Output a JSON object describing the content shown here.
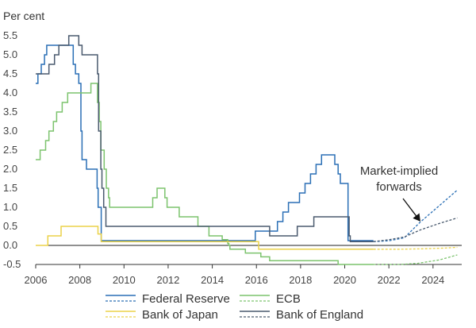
{
  "chart_data": {
    "type": "line",
    "ylabel": "Per cent",
    "xlim": [
      2006,
      2025.3
    ],
    "ylim": [
      -0.5,
      5.75
    ],
    "x_ticks": [
      2006,
      2008,
      2010,
      2012,
      2014,
      2016,
      2018,
      2020,
      2022,
      2024
    ],
    "y_ticks": [
      -0.5,
      0.0,
      0.5,
      1.0,
      1.5,
      2.0,
      2.5,
      3.0,
      3.5,
      4.0,
      4.5,
      5.0,
      5.5
    ],
    "y_tick_labels": [
      "-0.5",
      "0.0",
      "0.5",
      "1.0",
      "1.5",
      "2.0",
      "2.5",
      "3.0",
      "3.5",
      "4.0",
      "4.5",
      "5.0",
      "5.5"
    ],
    "grid": false,
    "zero_line": true,
    "annotation": {
      "lines": [
        "Market-implied",
        "forwards"
      ],
      "arrow_target": [
        2023.4,
        0.65
      ]
    },
    "legend_position": "bottom",
    "series": [
      {
        "name": "Federal Reserve",
        "color": "#2a6fb5",
        "step_points": [
          [
            2006.0,
            4.25
          ],
          [
            2006.1,
            4.5
          ],
          [
            2006.25,
            4.75
          ],
          [
            2006.4,
            5.0
          ],
          [
            2006.5,
            5.25
          ],
          [
            2007.7,
            4.75
          ],
          [
            2007.8,
            4.5
          ],
          [
            2007.95,
            4.25
          ],
          [
            2008.05,
            3.0
          ],
          [
            2008.1,
            2.25
          ],
          [
            2008.3,
            2.0
          ],
          [
            2008.78,
            1.5
          ],
          [
            2008.83,
            1.0
          ],
          [
            2008.97,
            0.125
          ],
          [
            2015.95,
            0.375
          ],
          [
            2016.95,
            0.625
          ],
          [
            2017.2,
            0.875
          ],
          [
            2017.45,
            1.125
          ],
          [
            2017.95,
            1.375
          ],
          [
            2018.2,
            1.625
          ],
          [
            2018.45,
            1.875
          ],
          [
            2018.7,
            2.125
          ],
          [
            2018.95,
            2.375
          ],
          [
            2019.55,
            2.125
          ],
          [
            2019.7,
            1.875
          ],
          [
            2019.8,
            1.625
          ],
          [
            2020.15,
            0.125
          ],
          [
            2021.3,
            0.125
          ]
        ],
        "forward_points": [
          [
            2021.3,
            0.1
          ],
          [
            2022.0,
            0.12
          ],
          [
            2022.7,
            0.2
          ],
          [
            2023.4,
            0.6
          ],
          [
            2024.2,
            1.0
          ],
          [
            2025.1,
            1.45
          ]
        ]
      },
      {
        "name": "ECB",
        "color": "#7cc36d",
        "step_points": [
          [
            2006.0,
            2.25
          ],
          [
            2006.2,
            2.5
          ],
          [
            2006.45,
            2.75
          ],
          [
            2006.6,
            3.0
          ],
          [
            2006.8,
            3.25
          ],
          [
            2006.95,
            3.5
          ],
          [
            2007.2,
            3.75
          ],
          [
            2007.45,
            4.0
          ],
          [
            2008.5,
            4.25
          ],
          [
            2008.8,
            3.75
          ],
          [
            2008.88,
            3.25
          ],
          [
            2008.95,
            2.5
          ],
          [
            2009.1,
            2.0
          ],
          [
            2009.2,
            1.5
          ],
          [
            2009.3,
            1.25
          ],
          [
            2009.35,
            1.0
          ],
          [
            2011.3,
            1.25
          ],
          [
            2011.5,
            1.5
          ],
          [
            2011.85,
            1.25
          ],
          [
            2011.95,
            1.0
          ],
          [
            2012.5,
            0.75
          ],
          [
            2013.35,
            0.5
          ],
          [
            2013.85,
            0.25
          ],
          [
            2014.45,
            0.15
          ],
          [
            2014.7,
            0.05
          ],
          [
            2014.75,
            0.0
          ],
          [
            2014.8,
            -0.1
          ],
          [
            2015.5,
            -0.2
          ],
          [
            2016.2,
            -0.3
          ],
          [
            2016.6,
            -0.4
          ],
          [
            2019.7,
            -0.5
          ],
          [
            2021.3,
            -0.5
          ]
        ],
        "forward_points": [
          [
            2021.3,
            -0.5
          ],
          [
            2022.5,
            -0.5
          ],
          [
            2023.3,
            -0.47
          ],
          [
            2024.3,
            -0.38
          ],
          [
            2025.1,
            -0.25
          ]
        ]
      },
      {
        "name": "Bank of Japan",
        "color": "#ebd248",
        "step_points": [
          [
            2006.0,
            0.0
          ],
          [
            2006.55,
            0.25
          ],
          [
            2007.15,
            0.5
          ],
          [
            2008.82,
            0.3
          ],
          [
            2008.97,
            0.1
          ],
          [
            2016.1,
            -0.1
          ],
          [
            2021.3,
            -0.1
          ]
        ],
        "forward_points": [
          [
            2021.3,
            -0.1
          ],
          [
            2022.5,
            -0.1
          ],
          [
            2023.5,
            -0.09
          ],
          [
            2024.5,
            -0.07
          ],
          [
            2025.1,
            -0.05
          ]
        ]
      },
      {
        "name": "Bank of England",
        "color": "#4a5a6e",
        "step_points": [
          [
            2006.0,
            4.5
          ],
          [
            2006.6,
            4.75
          ],
          [
            2006.85,
            5.0
          ],
          [
            2007.05,
            5.25
          ],
          [
            2007.5,
            5.5
          ],
          [
            2007.95,
            5.25
          ],
          [
            2008.1,
            5.0
          ],
          [
            2008.3,
            5.0
          ],
          [
            2008.8,
            4.5
          ],
          [
            2008.85,
            3.0
          ],
          [
            2008.95,
            2.0
          ],
          [
            2009.0,
            1.5
          ],
          [
            2009.08,
            1.0
          ],
          [
            2009.18,
            0.5
          ],
          [
            2016.6,
            0.25
          ],
          [
            2017.85,
            0.5
          ],
          [
            2018.6,
            0.75
          ],
          [
            2020.2,
            0.25
          ],
          [
            2020.25,
            0.1
          ],
          [
            2021.3,
            0.1
          ]
        ],
        "forward_points": [
          [
            2021.3,
            0.1
          ],
          [
            2022.0,
            0.15
          ],
          [
            2022.7,
            0.22
          ],
          [
            2023.4,
            0.4
          ],
          [
            2024.3,
            0.58
          ],
          [
            2025.1,
            0.72
          ]
        ]
      }
    ]
  }
}
